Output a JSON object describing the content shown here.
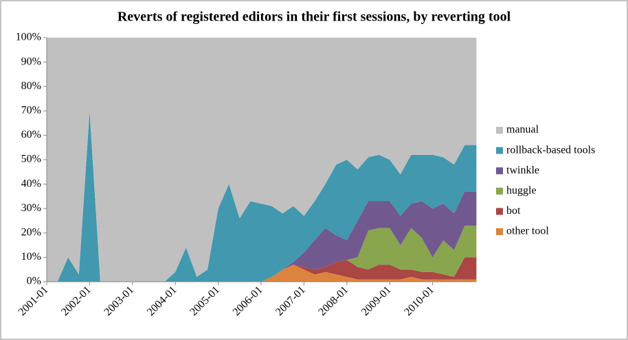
{
  "chart_data": {
    "type": "stacked-area",
    "title": "Reverts of registered editors in their first sessions, by reverting tool",
    "categories": [
      "2001-01",
      null,
      null,
      null,
      "2002-01",
      null,
      null,
      null,
      "2003-01",
      null,
      null,
      null,
      "2004-01",
      null,
      null,
      null,
      "2005-01",
      null,
      null,
      null,
      "2006-01",
      null,
      null,
      null,
      "2007-01",
      null,
      null,
      null,
      "2008-01",
      null,
      null,
      null,
      "2009-01",
      null,
      null,
      null,
      "2010-01",
      null,
      null,
      null
    ],
    "ylim": [
      0,
      100
    ],
    "yticks": [
      {
        "value": 0,
        "label": "0%"
      },
      {
        "value": 10,
        "label": "10%"
      },
      {
        "value": 20,
        "label": "20%"
      },
      {
        "value": 30,
        "label": "30%"
      },
      {
        "value": 40,
        "label": "40%"
      },
      {
        "value": 50,
        "label": "50%"
      },
      {
        "value": 60,
        "label": "60%"
      },
      {
        "value": 70,
        "label": "70%"
      },
      {
        "value": 80,
        "label": "80%"
      },
      {
        "value": 90,
        "label": "90%"
      },
      {
        "value": 100,
        "label": "100%"
      }
    ],
    "legend": "right",
    "series": [
      {
        "name": "manual",
        "color": "#c0c0c0",
        "values": [
          100,
          100,
          90,
          97,
          30,
          100,
          100,
          100,
          100,
          100,
          100,
          100,
          96,
          86,
          98,
          95,
          70,
          60,
          74,
          67,
          68,
          69,
          72,
          69,
          73,
          67,
          60,
          52,
          50,
          54,
          49,
          48,
          50,
          56,
          48,
          48,
          48,
          49,
          52,
          44
        ]
      },
      {
        "name": "rollback-based tools",
        "color": "#4198af",
        "values": [
          0,
          0,
          10,
          3,
          70,
          0,
          0,
          0,
          0,
          0,
          0,
          0,
          4,
          14,
          2,
          5,
          30,
          40,
          26,
          33,
          32,
          29,
          23,
          23,
          15,
          16,
          18,
          29,
          33,
          21,
          18,
          19,
          17,
          17,
          20,
          19,
          22,
          19,
          20,
          19
        ]
      },
      {
        "name": "twinkle",
        "color": "#71588f",
        "values": [
          0,
          0,
          0,
          0,
          0,
          0,
          0,
          0,
          0,
          0,
          0,
          0,
          0,
          0,
          0,
          0,
          0,
          0,
          0,
          0,
          0,
          0,
          0,
          1,
          6,
          12,
          16,
          11,
          8,
          15,
          12,
          11,
          11,
          12,
          10,
          15,
          20,
          15,
          15,
          14
        ]
      },
      {
        "name": "huggle",
        "color": "#89a54e",
        "values": [
          0,
          0,
          0,
          0,
          0,
          0,
          0,
          0,
          0,
          0,
          0,
          0,
          0,
          0,
          0,
          0,
          0,
          0,
          0,
          0,
          0,
          0,
          0,
          0,
          0,
          0,
          0,
          0,
          0,
          4,
          16,
          15,
          15,
          10,
          17,
          14,
          6,
          14,
          11,
          13
        ]
      },
      {
        "name": "bot",
        "color": "#aa4643",
        "values": [
          0,
          0,
          0,
          0,
          0,
          0,
          0,
          0,
          0,
          0,
          0,
          0,
          0,
          0,
          0,
          0,
          0,
          0,
          0,
          0,
          0,
          0,
          0,
          0,
          1,
          2,
          2,
          5,
          7,
          5,
          4,
          6,
          6,
          4,
          3,
          3,
          3,
          2,
          1,
          9
        ]
      },
      {
        "name": "other tool",
        "color": "#db843d",
        "values": [
          0,
          0,
          0,
          0,
          0,
          0,
          0,
          0,
          0,
          0,
          0,
          0,
          0,
          0,
          0,
          0,
          0,
          0,
          0,
          0,
          0,
          2,
          5,
          7,
          5,
          3,
          4,
          3,
          2,
          1,
          1,
          1,
          1,
          1,
          2,
          1,
          1,
          1,
          1,
          1
        ]
      }
    ]
  }
}
